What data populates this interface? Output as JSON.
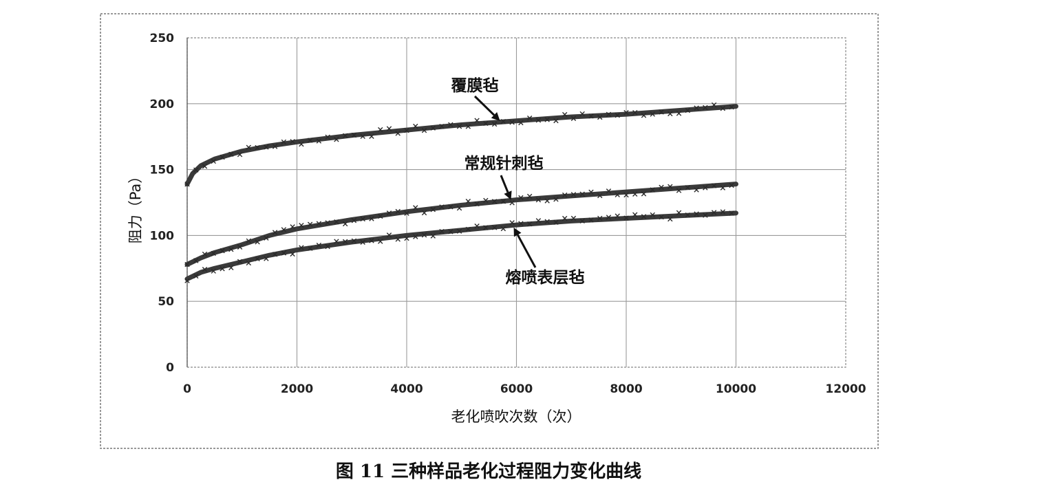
{
  "chart_data": {
    "type": "scatter",
    "title": "",
    "caption": "图 11  三种样品老化过程阻力变化曲线",
    "xlabel": "老化喷吹次数（次）",
    "ylabel": "阻力（Pa）",
    "xlim": [
      0,
      12000
    ],
    "ylim": [
      0,
      250
    ],
    "xticks": [
      0,
      2000,
      4000,
      6000,
      8000,
      10000,
      12000
    ],
    "yticks": [
      0,
      50,
      100,
      150,
      200,
      250
    ],
    "grid": true,
    "legend": "none",
    "series": [
      {
        "name": "覆膜毡",
        "x": [
          0,
          100,
          250,
          500,
          1000,
          1500,
          2000,
          3000,
          4000,
          5000,
          6000,
          7000,
          8000,
          9000,
          10000
        ],
        "values": [
          139,
          147,
          153,
          158,
          164,
          168,
          171,
          176,
          180,
          184,
          187,
          190,
          192,
          195,
          198
        ]
      },
      {
        "name": "常规针刺毡",
        "x": [
          0,
          250,
          500,
          1000,
          1500,
          2000,
          3000,
          4000,
          5000,
          6000,
          7000,
          8000,
          9000,
          10000
        ],
        "values": [
          78,
          83,
          87,
          93,
          100,
          105,
          112,
          118,
          123,
          127,
          130,
          133,
          136,
          139
        ]
      },
      {
        "name": "熔喷表层毡",
        "x": [
          0,
          250,
          500,
          1000,
          1500,
          2000,
          3000,
          4000,
          5000,
          6000,
          7000,
          8000,
          9000,
          10000
        ],
        "values": [
          67,
          72,
          75,
          80,
          85,
          89,
          95,
          100,
          104,
          108,
          111,
          113,
          115,
          117
        ]
      }
    ],
    "annotations": [
      {
        "text": "覆膜毡",
        "target_x": 5700,
        "target_y": 187
      },
      {
        "text": "常规针刺毡",
        "target_x": 5900,
        "target_y": 127
      },
      {
        "text": "熔喷表层毡",
        "target_x": 5950,
        "target_y": 106
      }
    ]
  }
}
